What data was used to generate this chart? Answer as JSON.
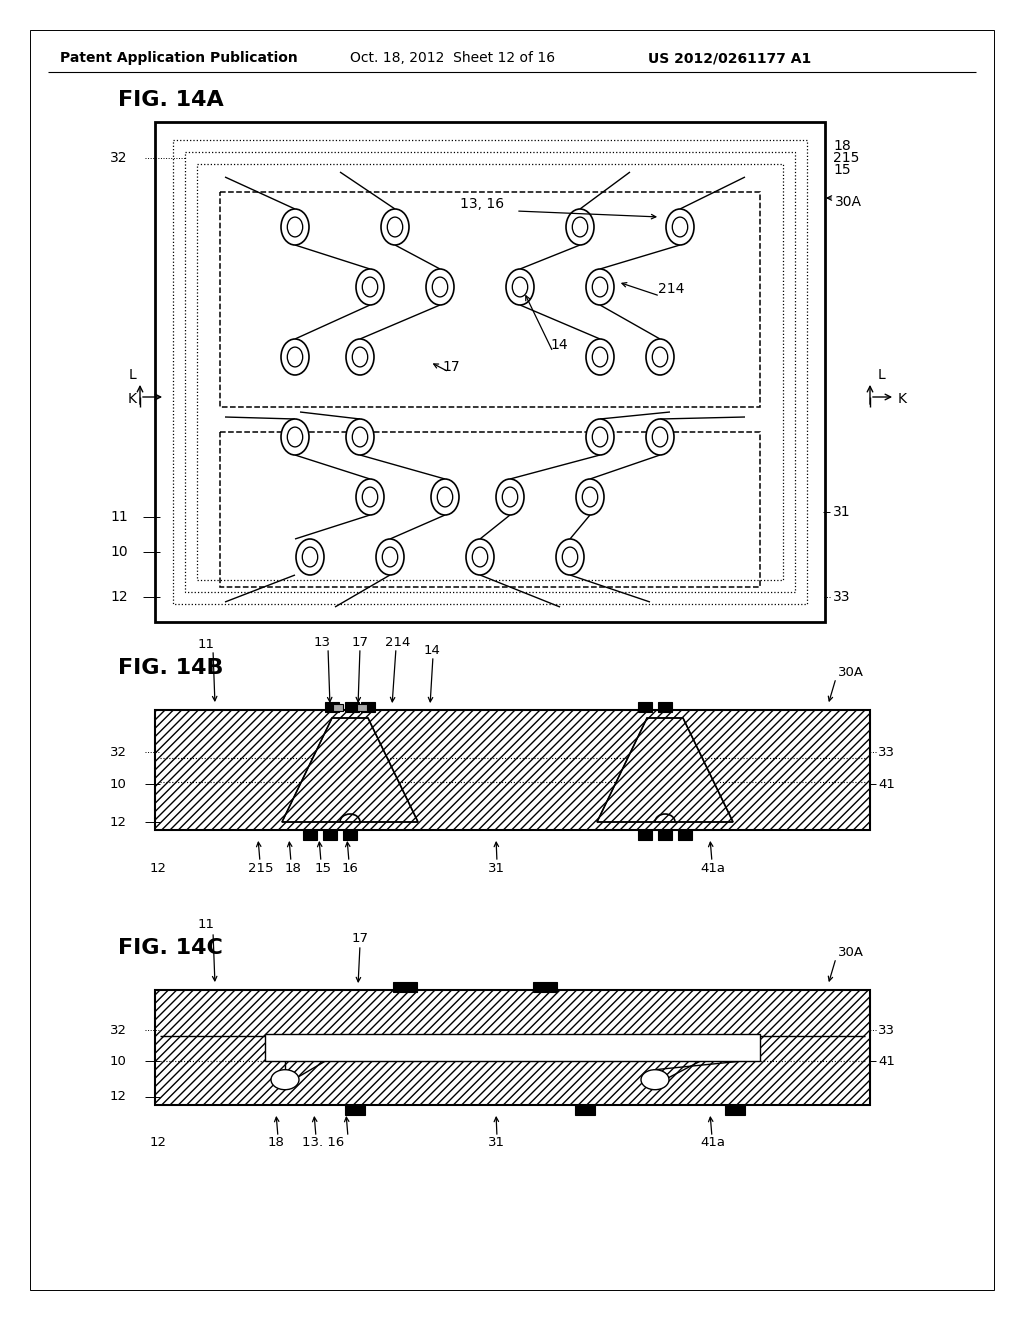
{
  "bg_color": "#ffffff",
  "header_left": "Patent Application Publication",
  "header_mid": "Oct. 18, 2012  Sheet 12 of 16",
  "header_right": "US 2012/0261177 A1",
  "fig14a_title": "FIG. 14A",
  "fig14b_title": "FIG. 14B",
  "fig14c_title": "FIG. 14C"
}
